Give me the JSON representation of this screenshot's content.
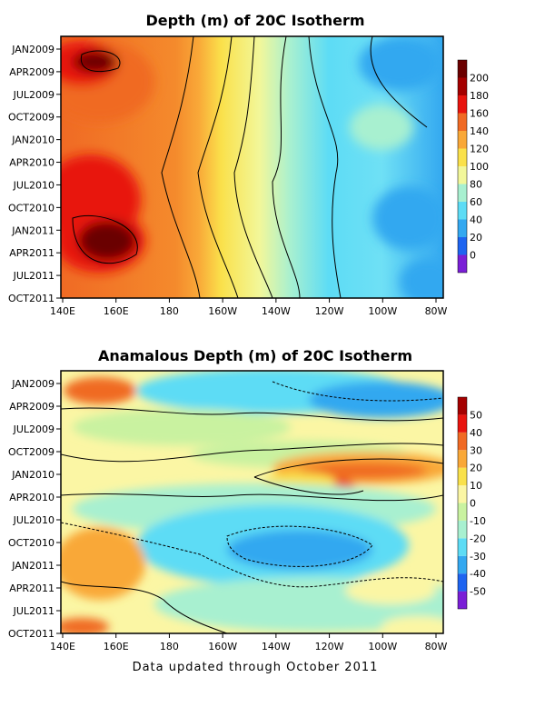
{
  "footer": "Data updated through October 2011",
  "chart_data": [
    {
      "type": "heatmap",
      "title": "Depth (m) of 20C Isotherm",
      "x_ticks": [
        "140E",
        "160E",
        "180",
        "160W",
        "140W",
        "120W",
        "100W",
        "80W"
      ],
      "y_ticks": [
        "JAN2009",
        "APR2009",
        "JUL2009",
        "OCT2009",
        "JAN2010",
        "APR2010",
        "JUL2010",
        "OCT2010",
        "JAN2011",
        "APR2011",
        "JUL2011",
        "OCT2011"
      ],
      "colorbar": {
        "labels": [
          "0",
          "20",
          "40",
          "60",
          "80",
          "100",
          "120",
          "140",
          "160",
          "180",
          "200"
        ],
        "colors": [
          "#7a1fd6",
          "#1e64f0",
          "#33a8f0",
          "#5ddcf5",
          "#a8f0d0",
          "#f2f79a",
          "#fae14b",
          "#f9a838",
          "#f06a24",
          "#e8140e",
          "#a40000",
          "#6b0000"
        ]
      },
      "field": {
        "zonal_gradient_from": 180,
        "zonal_gradient_to": 40,
        "hotspots": [
          {
            "x": "150E-160E",
            "t": "Feb2009",
            "value": 200
          },
          {
            "x": "150E-160E",
            "t": "Jan2011-Apr2011",
            "value": 210
          }
        ]
      }
    },
    {
      "type": "heatmap",
      "title": "Anamalous Depth (m) of 20C Isotherm",
      "x_ticks": [
        "140E",
        "160E",
        "180",
        "160W",
        "140W",
        "120W",
        "100W",
        "80W"
      ],
      "y_ticks": [
        "JAN2009",
        "APR2009",
        "JUL2009",
        "OCT2009",
        "JAN2010",
        "APR2010",
        "JUL2010",
        "OCT2010",
        "JAN2011",
        "APR2011",
        "JUL2011",
        "OCT2011"
      ],
      "colorbar": {
        "labels": [
          "-50",
          "-40",
          "-30",
          "-20",
          "-10",
          "0",
          "10",
          "20",
          "30",
          "40",
          "50"
        ],
        "colors": [
          "#7a1fd6",
          "#1e64f0",
          "#33a8f0",
          "#5ddcf5",
          "#a8f0d0",
          "#c9f2a0",
          "#fbf6a4",
          "#f9e14b",
          "#f9a838",
          "#f06a24",
          "#e8140e",
          "#a40000"
        ]
      },
      "features": [
        {
          "x": "150E-170E",
          "t": "Jan2009",
          "anomaly": 30
        },
        {
          "x": "140W-80W",
          "t": "Dec2009-Jan2010",
          "anomaly": 30
        },
        {
          "x": "150W-110W",
          "t": "Aug2010-Nov2010",
          "anomaly": -30
        },
        {
          "x": "140E-175E",
          "t": "Oct2010-Mar2011",
          "anomaly": 30
        }
      ]
    }
  ]
}
